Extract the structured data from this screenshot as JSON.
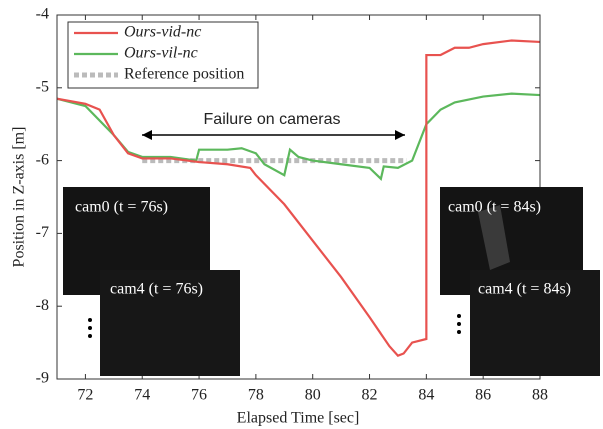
{
  "chart_data": {
    "type": "line",
    "xlabel": "Elapsed Time [sec]",
    "ylabel": "Position in Z-axis [m]",
    "annotation": "Failure on cameras",
    "xlim": [
      71,
      88
    ],
    "xticks": [
      72,
      74,
      76,
      78,
      80,
      82,
      84,
      86,
      88
    ],
    "ylim": [
      -9,
      -4
    ],
    "yticks": [
      -9,
      -8,
      -7,
      -6,
      -5,
      -4
    ],
    "legend": "upper left",
    "series": [
      {
        "name": "Ours-vid-nc",
        "color": "#e8524f",
        "style": "solid",
        "x": [
          71,
          72,
          72.5,
          73,
          73.5,
          74,
          75,
          76,
          77,
          77.8,
          78,
          79,
          80,
          81,
          82,
          82.7,
          83,
          83.2,
          83.5,
          84,
          84,
          84.5,
          85,
          85.5,
          86,
          87,
          88
        ],
        "values": [
          -5.15,
          -5.22,
          -5.3,
          -5.65,
          -5.9,
          -5.97,
          -5.97,
          -6.02,
          -6.05,
          -6.1,
          -6.2,
          -6.6,
          -7.1,
          -7.6,
          -8.15,
          -8.55,
          -8.68,
          -8.65,
          -8.5,
          -8.45,
          -4.55,
          -4.55,
          -4.45,
          -4.45,
          -4.4,
          -4.35,
          -4.37
        ]
      },
      {
        "name": "Ours-vil-nc",
        "color": "#5cb85c",
        "style": "solid",
        "x": [
          71,
          72,
          73,
          73.5,
          74,
          75,
          75.9,
          76,
          76.5,
          77,
          77.5,
          78,
          78.3,
          79,
          79.2,
          79.5,
          80,
          81,
          82,
          82.4,
          82.5,
          83,
          83.5,
          84,
          84.5,
          85,
          86,
          87,
          88
        ],
        "values": [
          -5.15,
          -5.25,
          -5.65,
          -5.88,
          -5.95,
          -5.95,
          -6.0,
          -5.85,
          -5.85,
          -5.85,
          -5.83,
          -5.9,
          -6.05,
          -6.2,
          -5.85,
          -5.95,
          -6.0,
          -6.05,
          -6.1,
          -6.25,
          -6.08,
          -6.1,
          -6.0,
          -5.5,
          -5.3,
          -5.2,
          -5.12,
          -5.08,
          -5.1
        ]
      },
      {
        "name": "Reference position",
        "color": "#bbbbbb",
        "style": "dotted",
        "x": [
          74,
          83.3
        ],
        "values": [
          -6,
          -6
        ]
      }
    ],
    "insets": [
      "cam0 (t = 76s)",
      "cam4 (t = 76s)",
      "cam0 (t = 84s)",
      "cam4 (t = 84s)"
    ]
  }
}
